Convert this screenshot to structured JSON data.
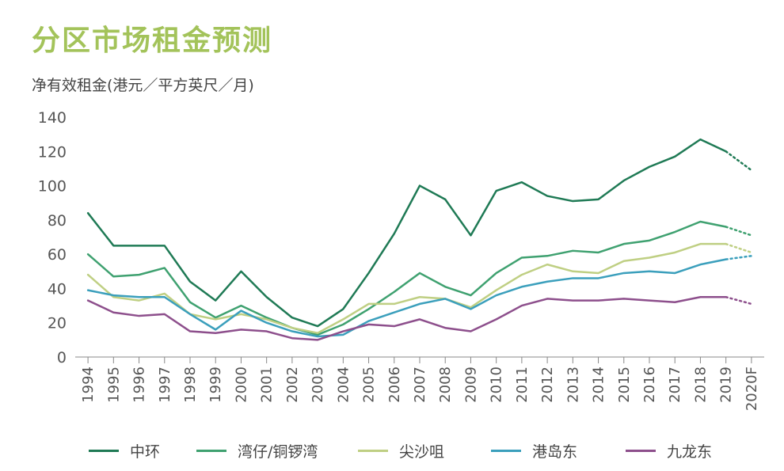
{
  "header": {
    "title": "分区市场租金预测",
    "subtitle": "净有效租金(港元／平方英尺／月)"
  },
  "chart_data": {
    "type": "line",
    "title": "分区市场租金预测",
    "ylabel": "净有效租金(港元／平方英尺／月)",
    "xlabel": "",
    "ylim": [
      0,
      140
    ],
    "yticks": [
      0,
      20,
      40,
      60,
      80,
      100,
      120,
      140
    ],
    "grid": false,
    "legend_position": "bottom",
    "categories": [
      "1994",
      "1995",
      "1996",
      "1997",
      "1998",
      "1999",
      "2000",
      "2001",
      "2002",
      "2003",
      "2004",
      "2005",
      "2006",
      "2007",
      "2008",
      "2009",
      "2010",
      "2011",
      "2012",
      "2013",
      "2014",
      "2015",
      "2016",
      "2017",
      "2018",
      "2019",
      "2020F"
    ],
    "forecast_from_index": 25,
    "series": [
      {
        "name": "中环",
        "color": "#1f7a55",
        "values": [
          84,
          65,
          65,
          65,
          44,
          33,
          50,
          35,
          23,
          18,
          28,
          49,
          72,
          100,
          92,
          71,
          97,
          102,
          94,
          91,
          92,
          103,
          111,
          117,
          127,
          120,
          109
        ]
      },
      {
        "name": "湾仔/铜锣湾",
        "color": "#3fa170",
        "values": [
          60,
          47,
          48,
          52,
          32,
          23,
          30,
          23,
          17,
          13,
          19,
          28,
          38,
          49,
          41,
          36,
          49,
          58,
          59,
          62,
          61,
          66,
          68,
          73,
          79,
          76,
          71
        ]
      },
      {
        "name": "尖沙咀",
        "color": "#bfcf83",
        "values": [
          48,
          35,
          33,
          37,
          25,
          22,
          25,
          22,
          17,
          14,
          22,
          31,
          31,
          35,
          34,
          29,
          39,
          48,
          54,
          50,
          49,
          56,
          58,
          61,
          66,
          66,
          61
        ]
      },
      {
        "name": "港岛东",
        "color": "#3b9fbc",
        "values": [
          39,
          36,
          35,
          35,
          25,
          16,
          27,
          20,
          15,
          12,
          13,
          21,
          26,
          31,
          34,
          28,
          36,
          41,
          44,
          46,
          46,
          49,
          50,
          49,
          54,
          57,
          59
        ]
      },
      {
        "name": "九龙东",
        "color": "#8d4f8c",
        "values": [
          33,
          26,
          24,
          25,
          15,
          14,
          16,
          15,
          11,
          10,
          15,
          19,
          18,
          22,
          17,
          15,
          22,
          30,
          34,
          33,
          33,
          34,
          33,
          32,
          35,
          35,
          31
        ]
      }
    ]
  }
}
